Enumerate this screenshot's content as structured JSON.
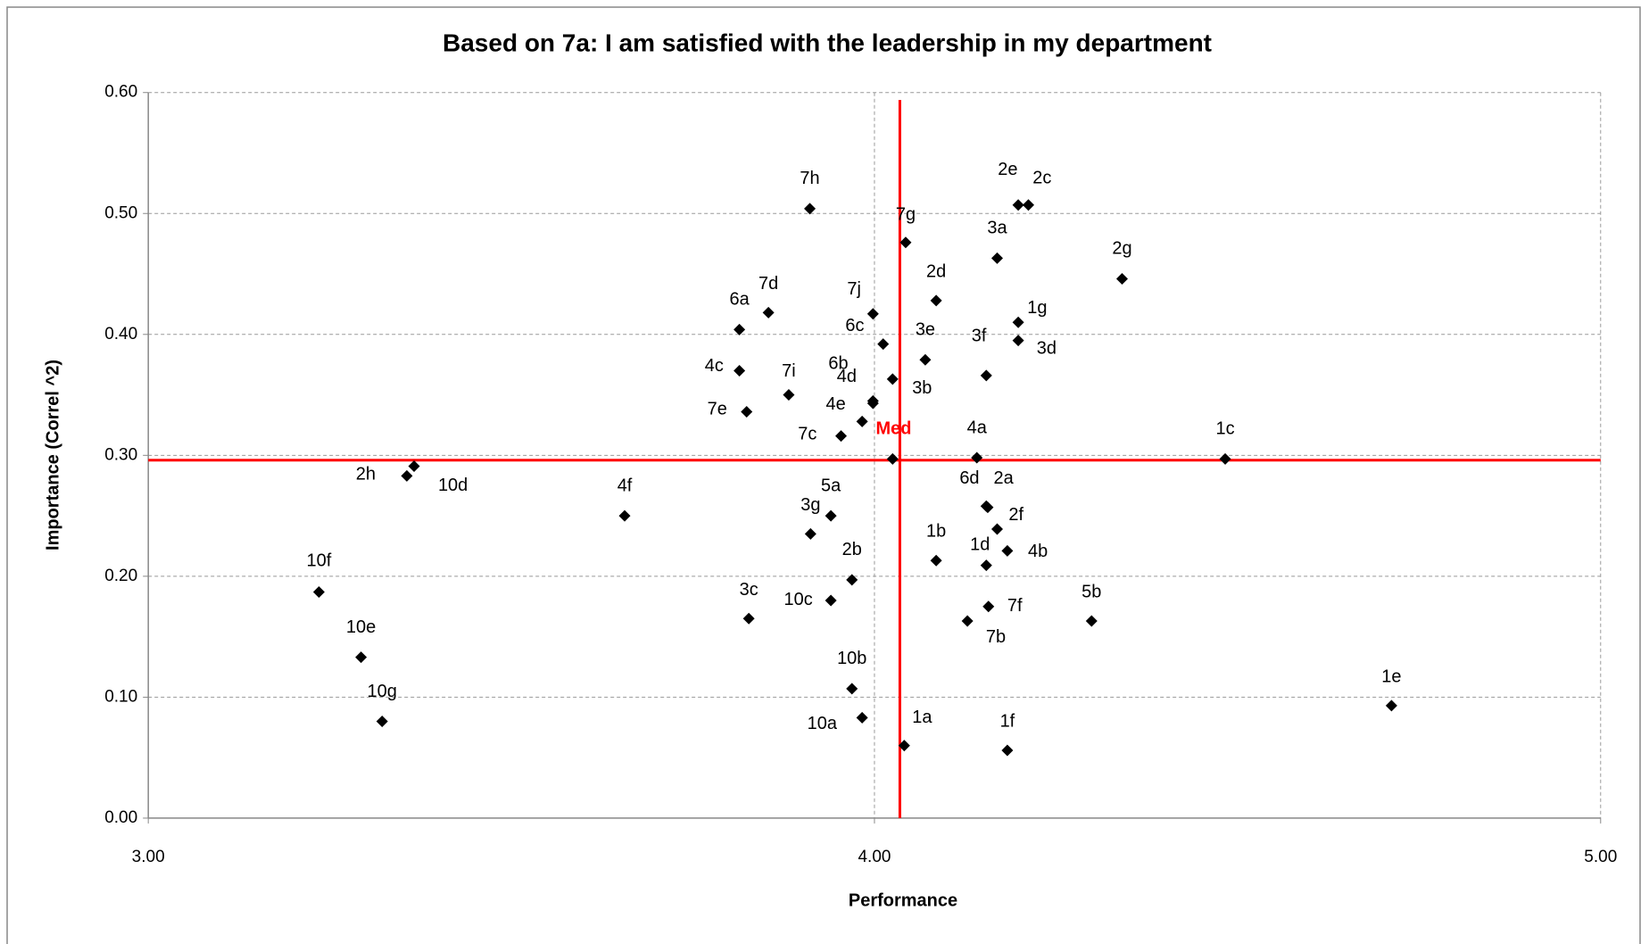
{
  "chart_data": {
    "type": "scatter",
    "title": "Based on 7a: I am satisfied with the leadership in my department",
    "x_label": "Performance",
    "y_label": "Importance (Correl ^2)",
    "xlim": [
      3,
      5
    ],
    "ylim": [
      0,
      0.6
    ],
    "xticks": [
      {
        "value": 3,
        "label": "3.00"
      },
      {
        "value": 4,
        "label": "4.00"
      },
      {
        "value": 5,
        "label": "5.00"
      }
    ],
    "yticks": [
      {
        "value": 0,
        "label": "0.00"
      },
      {
        "value": 0.1,
        "label": "0.10"
      },
      {
        "value": 0.2,
        "label": "0.20"
      },
      {
        "value": 0.3,
        "label": "0.30"
      },
      {
        "value": 0.4,
        "label": "0.40"
      },
      {
        "value": 0.5,
        "label": "0.50"
      },
      {
        "value": 0.6,
        "label": "0.60"
      }
    ],
    "grid": true,
    "series": [
      {
        "color": "#000000",
        "labels": [
          "7h",
          "7g",
          "2e",
          "2c",
          "3a",
          "2g",
          "2d",
          "7j",
          "7d",
          "6a",
          "6c",
          "1g",
          "3d",
          "3e",
          "3f",
          "4c",
          "7i",
          "6b",
          "4d",
          "3b",
          "7e",
          "4e",
          "7c",
          "4a",
          "1c",
          "2h",
          "10d",
          "4f",
          "6d",
          "2a",
          "2f",
          "5a",
          "3g",
          "4b",
          "1b",
          "1d",
          "2b",
          "10f",
          "10c",
          "7f",
          "3c",
          "7b",
          "5b",
          "10e",
          "10b",
          "1e",
          "10g",
          "10a",
          "1a",
          "1f"
        ],
        "x": [
          3.911,
          4.043,
          4.198,
          4.212,
          4.169,
          4.341,
          4.085,
          3.998,
          3.854,
          3.814,
          4.012,
          4.198,
          4.198,
          4.07,
          4.154,
          3.814,
          3.882,
          3.998,
          3.998,
          4.025,
          3.824,
          3.983,
          3.954,
          4.141,
          4.483,
          3.356,
          3.366,
          3.656,
          4.154,
          4.156,
          4.169,
          3.94,
          3.912,
          4.183,
          4.085,
          4.154,
          3.969,
          3.235,
          3.94,
          4.157,
          3.827,
          4.128,
          4.299,
          3.293,
          3.969,
          4.712,
          3.322,
          3.983,
          4.041,
          4.183
        ],
        "values": [
          0.504,
          0.476,
          0.507,
          0.507,
          0.463,
          0.446,
          0.428,
          0.417,
          0.418,
          0.404,
          0.392,
          0.41,
          0.395,
          0.379,
          0.366,
          0.37,
          0.35,
          0.345,
          0.343,
          0.363,
          0.336,
          0.328,
          0.316,
          0.298,
          0.297,
          0.283,
          0.291,
          0.25,
          0.258,
          0.257,
          0.239,
          0.25,
          0.235,
          0.221,
          0.213,
          0.209,
          0.197,
          0.187,
          0.18,
          0.175,
          0.165,
          0.163,
          0.163,
          0.133,
          0.107,
          0.093,
          0.08,
          0.083,
          0.06,
          0.056
        ]
      }
    ],
    "median": {
      "label": "Med",
      "x": 4.035,
      "y": 0.296,
      "point_x": 4.025,
      "point_y": 0.297,
      "color": "#ff0000"
    }
  }
}
